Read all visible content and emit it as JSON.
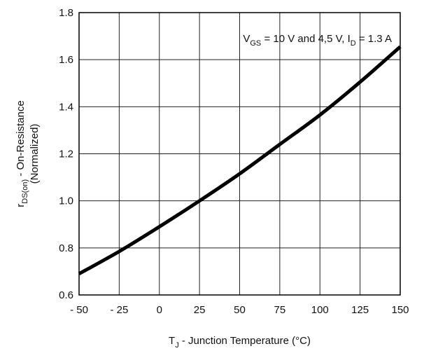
{
  "chart_data": {
    "type": "line",
    "title": "",
    "xlabel": {
      "main": "T",
      "sub": "J",
      "rest": " - Junction Temperature (°C)"
    },
    "ylabel": {
      "line1_main": "r",
      "line1_sub": "DS(on)",
      "line1_rest": " - On-Resistance",
      "line2": "(Normalized)"
    },
    "xlim": [
      -50,
      150
    ],
    "ylim": [
      0.6,
      1.8
    ],
    "x_ticks": [
      -50,
      -25,
      0,
      25,
      50,
      75,
      100,
      125,
      150
    ],
    "x_tick_labels": [
      "- 50",
      "- 25",
      "0",
      "25",
      "50",
      "75",
      "100",
      "125",
      "150"
    ],
    "y_ticks": [
      0.6,
      0.8,
      1.0,
      1.2,
      1.4,
      1.6,
      1.8
    ],
    "y_tick_labels": [
      "0.6",
      "0.8",
      "1.0",
      "1.2",
      "1.4",
      "1.6",
      "1.8"
    ],
    "grid": true,
    "annotation": {
      "parts": [
        {
          "t": "V",
          "sub": false
        },
        {
          "t": "GS",
          "sub": true
        },
        {
          "t": " = 10 V and 4,5 V, I",
          "sub": false
        },
        {
          "t": "D",
          "sub": true
        },
        {
          "t": " = 1.3 A",
          "sub": false
        }
      ]
    },
    "series": [
      {
        "color": "#000000",
        "x": [
          -50,
          -25,
          0,
          25,
          50,
          75,
          100,
          125,
          150
        ],
        "y": [
          0.69,
          0.785,
          0.89,
          1.0,
          1.115,
          1.24,
          1.365,
          1.505,
          1.655
        ]
      }
    ]
  }
}
